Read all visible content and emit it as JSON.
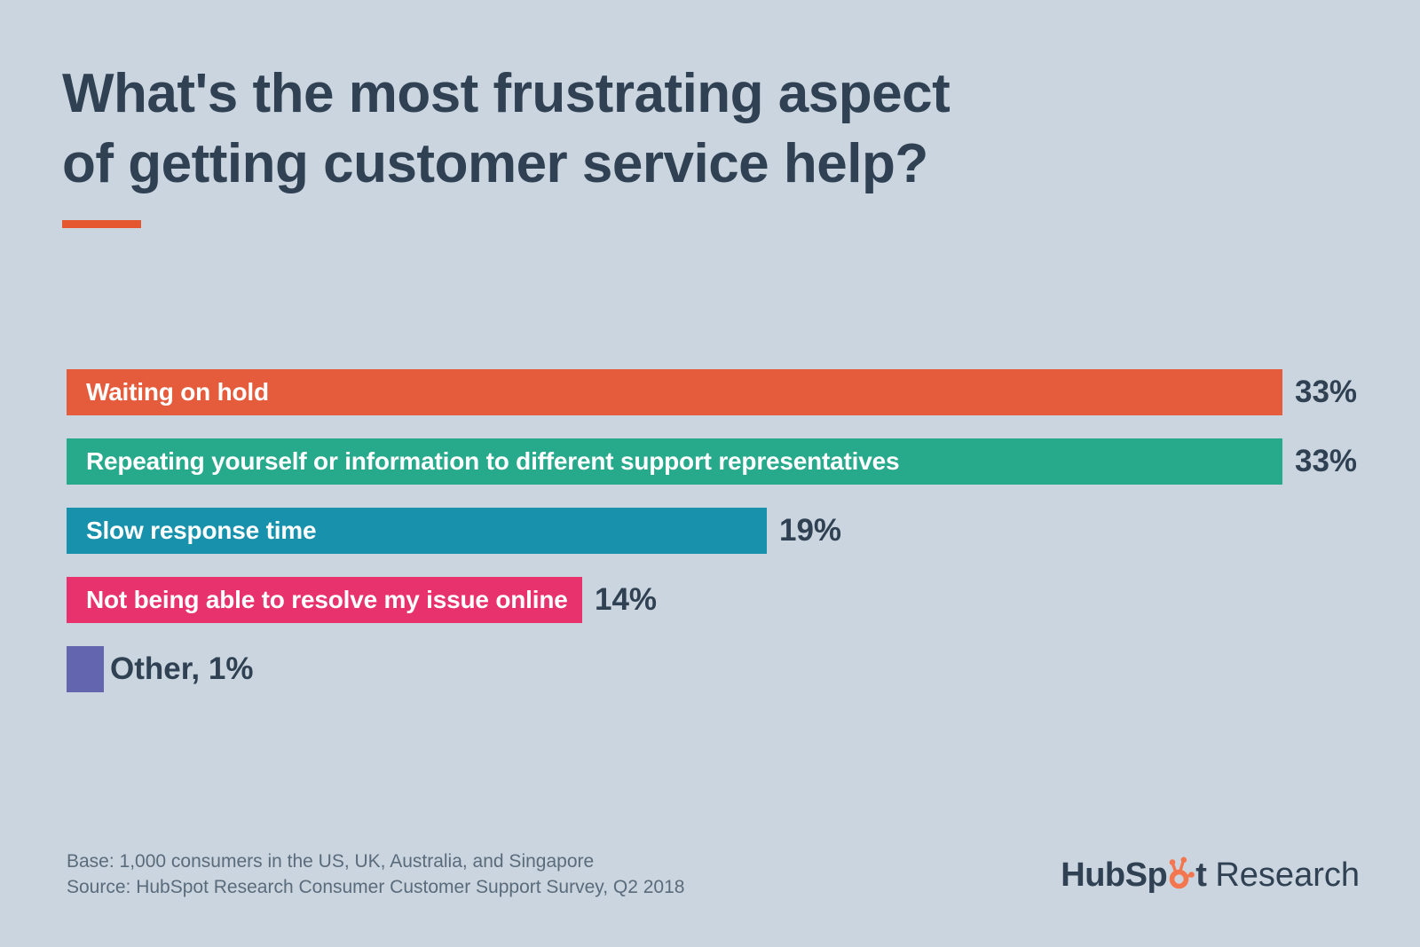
{
  "page": {
    "background_color": "#CBD5DF"
  },
  "header": {
    "title_line1": "What's the most frustrating aspect",
    "title_line2": "of getting customer service help?",
    "accent_color": "#E4572F"
  },
  "chart_data": {
    "type": "bar",
    "orientation": "horizontal",
    "title": "What's the most frustrating aspect of getting customer service help?",
    "categories": [
      "Waiting on hold",
      "Repeating yourself or information to different support representatives",
      "Slow response time",
      "Not being able to resolve my issue online",
      "Other"
    ],
    "values": [
      33,
      33,
      19,
      14,
      1
    ],
    "xlim": [
      0,
      33
    ],
    "grid": false,
    "legend": false,
    "value_suffix": "%",
    "bars": [
      {
        "label": "Waiting on hold",
        "value": 33,
        "value_label": "33%",
        "color": "#E55C3C",
        "label_placement": "inside"
      },
      {
        "label": "Repeating yourself or information to different support representatives",
        "value": 33,
        "value_label": "33%",
        "color": "#27A98C",
        "label_placement": "inside"
      },
      {
        "label": "Slow response time",
        "value": 19,
        "value_label": "19%",
        "color": "#1791AC",
        "label_placement": "inside"
      },
      {
        "label": "Not being able to resolve my issue online",
        "value": 14,
        "value_label": "14%",
        "color": "#E7326E",
        "label_placement": "inside"
      },
      {
        "label": "Other, 1%",
        "value": 1,
        "value_label": "",
        "color": "#6366AE",
        "label_placement": "outside"
      }
    ]
  },
  "footer": {
    "base_note": "Base: 1,000 consumers in the US, UK, Australia, and Singapore",
    "source_note": "Source: HubSpot Research Consumer Customer Support Survey, Q2 2018"
  },
  "branding": {
    "logo_part1": "HubSp",
    "logo_part2": "t",
    "logo_suffix": "Research",
    "sprocket_color": "#F4764F",
    "text_color": "#304153"
  }
}
